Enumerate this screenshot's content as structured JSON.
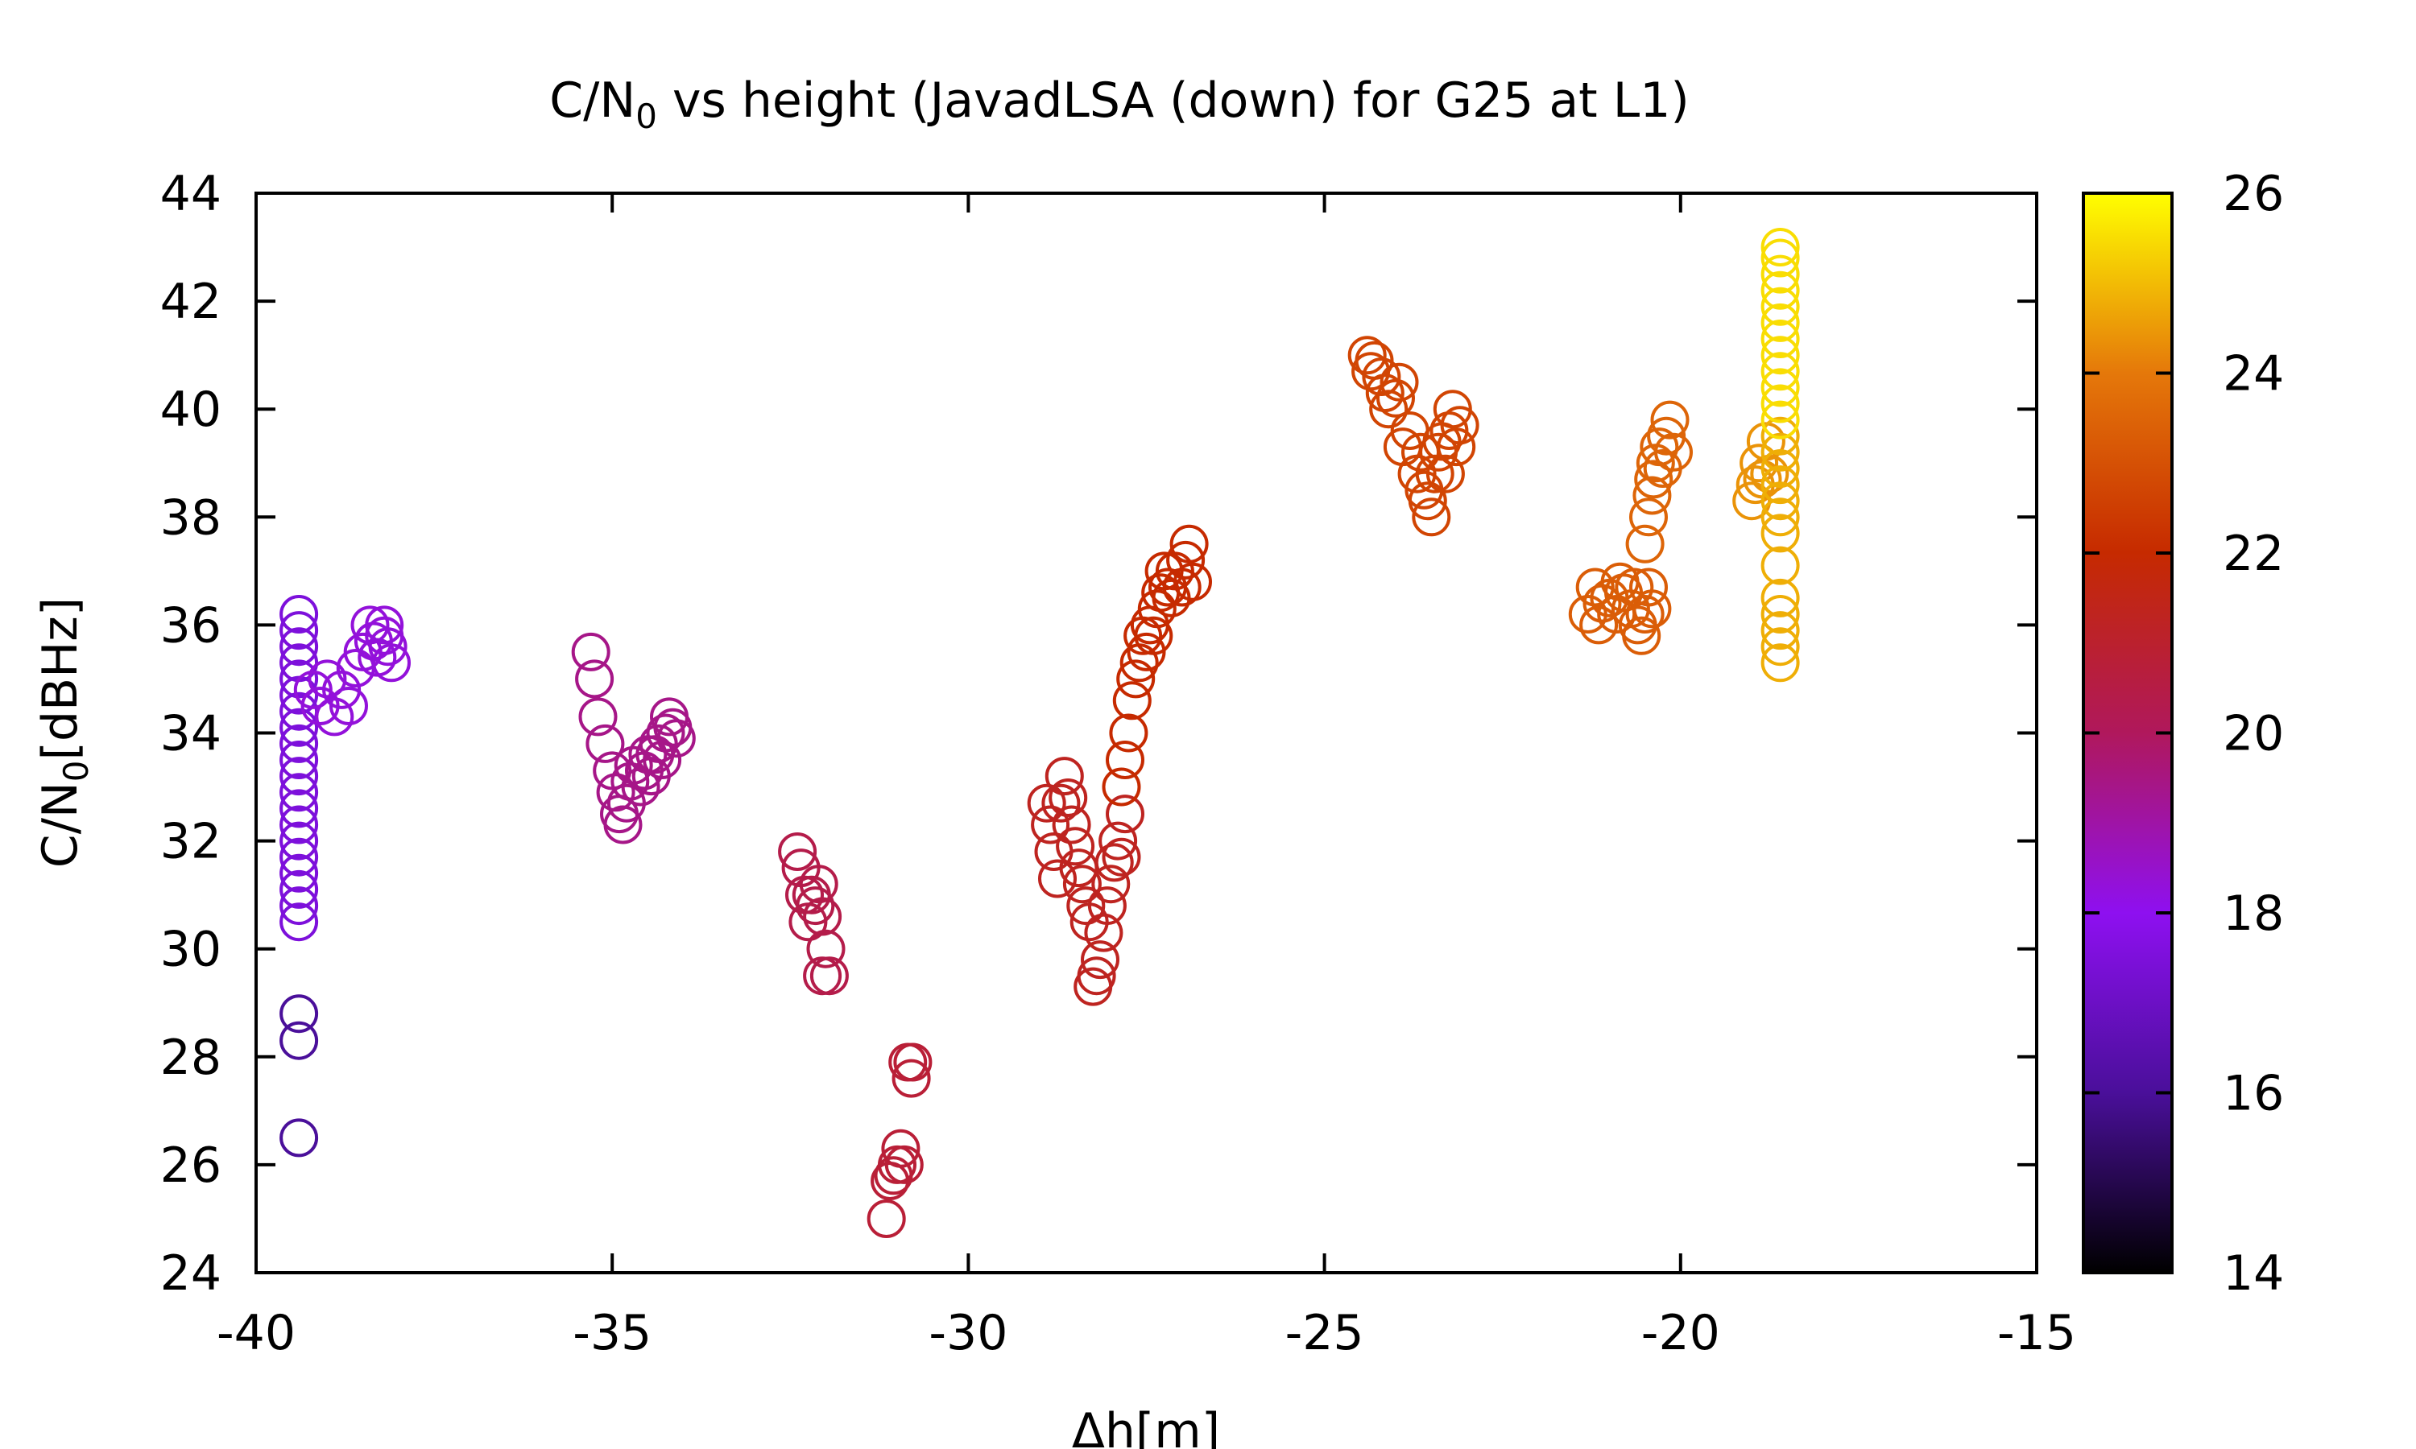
{
  "chart_data": {
    "type": "scatter",
    "title": "C/N",
    "title_sub": "0",
    "title_rest": " vs height (JavadLSA (down) for G25 at L1)",
    "xlabel": "Δh[m]",
    "ylabel": "C/N",
    "ylabel_sub": "0",
    "ylabel_rest": "[dBHz]",
    "xlim": [
      -40,
      -15
    ],
    "ylim": [
      24,
      44
    ],
    "xticks": [
      "-40",
      "-35",
      "-30",
      "-25",
      "-20",
      "-15"
    ],
    "yticks": [
      "24",
      "26",
      "28",
      "30",
      "32",
      "34",
      "36",
      "38",
      "40",
      "42",
      "44"
    ],
    "colorbar": {
      "range": [
        14,
        26
      ],
      "ticks": [
        "14",
        "16",
        "18",
        "20",
        "22",
        "24",
        "26"
      ],
      "palette": "black-purple-red-orange-yellow",
      "colors": [
        "#000000",
        "#4a0f9a",
        "#8e10f0",
        "#b0185c",
        "#c62a00",
        "#e5780a",
        "#ffff00"
      ]
    },
    "grid": false,
    "marker": "open-circle",
    "series": [
      {
        "color_value": 16.0,
        "points": [
          [
            -39.4,
            26.5
          ],
          [
            -39.4,
            28.3
          ],
          [
            -39.4,
            28.8
          ]
        ]
      },
      {
        "color_value": 17.5,
        "points": [
          [
            -39.4,
            30.5
          ],
          [
            -39.4,
            30.8
          ],
          [
            -39.4,
            31.1
          ],
          [
            -39.4,
            31.4
          ],
          [
            -39.4,
            31.7
          ],
          [
            -39.4,
            32.0
          ],
          [
            -39.4,
            32.3
          ],
          [
            -39.4,
            32.6
          ],
          [
            -39.4,
            32.9
          ],
          [
            -39.4,
            33.2
          ],
          [
            -39.4,
            33.5
          ],
          [
            -39.4,
            33.8
          ],
          [
            -39.4,
            34.1
          ],
          [
            -39.4,
            34.4
          ],
          [
            -39.4,
            34.7
          ],
          [
            -39.4,
            35.0
          ],
          [
            -39.4,
            35.3
          ],
          [
            -39.4,
            35.6
          ],
          [
            -39.4,
            35.9
          ],
          [
            -39.4,
            36.2
          ]
        ]
      },
      {
        "color_value": 18.3,
        "points": [
          [
            -39.2,
            34.8
          ],
          [
            -39.1,
            34.5
          ],
          [
            -39.0,
            35.0
          ],
          [
            -38.9,
            34.3
          ],
          [
            -38.8,
            34.8
          ],
          [
            -38.7,
            34.5
          ],
          [
            -38.6,
            35.2
          ],
          [
            -38.5,
            35.5
          ],
          [
            -38.4,
            36.0
          ],
          [
            -38.35,
            35.7
          ],
          [
            -38.3,
            35.4
          ],
          [
            -38.2,
            36.0
          ],
          [
            -38.15,
            35.6
          ],
          [
            -38.1,
            35.3
          ],
          [
            -38.2,
            35.8
          ]
        ]
      },
      {
        "color_value": 19.4,
        "points": [
          [
            -35.3,
            35.5
          ],
          [
            -35.25,
            35.0
          ],
          [
            -35.2,
            34.3
          ],
          [
            -35.1,
            33.8
          ],
          [
            -35.0,
            33.3
          ],
          [
            -34.95,
            32.9
          ],
          [
            -34.9,
            32.5
          ],
          [
            -34.85,
            32.3
          ],
          [
            -34.8,
            32.7
          ],
          [
            -34.75,
            33.1
          ],
          [
            -34.7,
            33.4
          ],
          [
            -34.6,
            33.0
          ],
          [
            -34.55,
            33.3
          ],
          [
            -34.5,
            33.6
          ],
          [
            -34.45,
            33.2
          ],
          [
            -34.4,
            33.6
          ],
          [
            -34.35,
            33.8
          ],
          [
            -34.3,
            33.5
          ],
          [
            -34.25,
            34.0
          ],
          [
            -34.2,
            34.3
          ],
          [
            -34.15,
            34.1
          ],
          [
            -34.1,
            33.9
          ]
        ]
      },
      {
        "color_value": 20.4,
        "points": [
          [
            -32.4,
            31.8
          ],
          [
            -32.35,
            31.5
          ],
          [
            -32.3,
            31.0
          ],
          [
            -32.25,
            30.5
          ],
          [
            -32.2,
            31.0
          ],
          [
            -32.15,
            30.8
          ],
          [
            -32.1,
            31.2
          ],
          [
            -32.05,
            30.6
          ],
          [
            -32.0,
            30.0
          ],
          [
            -31.95,
            29.5
          ],
          [
            -32.05,
            29.5
          ]
        ]
      },
      {
        "color_value": 20.8,
        "points": [
          [
            -31.15,
            25.0
          ],
          [
            -31.1,
            25.7
          ],
          [
            -31.05,
            25.8
          ],
          [
            -31.0,
            26.0
          ],
          [
            -30.95,
            26.3
          ],
          [
            -30.9,
            26.0
          ],
          [
            -30.85,
            27.9
          ],
          [
            -30.8,
            27.6
          ],
          [
            -30.78,
            27.9
          ]
        ]
      },
      {
        "color_value": 21.3,
        "points": [
          [
            -28.9,
            32.7
          ],
          [
            -28.85,
            32.3
          ],
          [
            -28.8,
            31.8
          ],
          [
            -28.75,
            31.3
          ],
          [
            -28.7,
            32.7
          ],
          [
            -28.65,
            33.2
          ],
          [
            -28.6,
            32.8
          ],
          [
            -28.55,
            32.3
          ],
          [
            -28.5,
            31.9
          ],
          [
            -28.45,
            31.5
          ],
          [
            -28.4,
            31.2
          ],
          [
            -28.35,
            30.8
          ],
          [
            -28.3,
            30.5
          ],
          [
            -28.25,
            29.3
          ],
          [
            -28.2,
            29.5
          ],
          [
            -28.15,
            29.8
          ],
          [
            -28.1,
            30.3
          ],
          [
            -28.05,
            30.8
          ],
          [
            -28.0,
            31.2
          ],
          [
            -27.95,
            31.6
          ],
          [
            -27.9,
            32.0
          ],
          [
            -27.85,
            31.7
          ],
          [
            -27.8,
            32.5
          ]
        ]
      },
      {
        "color_value": 22.0,
        "points": [
          [
            -27.85,
            33.0
          ],
          [
            -27.8,
            33.5
          ],
          [
            -27.75,
            34.0
          ],
          [
            -27.7,
            34.6
          ],
          [
            -27.65,
            35.0
          ],
          [
            -27.6,
            35.3
          ],
          [
            -27.55,
            35.8
          ],
          [
            -27.5,
            35.5
          ],
          [
            -27.45,
            36.0
          ],
          [
            -27.4,
            35.8
          ],
          [
            -27.35,
            36.3
          ],
          [
            -27.3,
            36.6
          ],
          [
            -27.25,
            37.0
          ],
          [
            -27.2,
            36.7
          ],
          [
            -27.15,
            36.5
          ],
          [
            -27.1,
            37.0
          ],
          [
            -27.0,
            36.7
          ],
          [
            -26.95,
            37.2
          ],
          [
            -26.9,
            37.5
          ],
          [
            -26.85,
            36.8
          ]
        ]
      },
      {
        "color_value": 22.7,
        "points": [
          [
            -24.4,
            41.0
          ],
          [
            -24.35,
            40.7
          ],
          [
            -24.3,
            40.9
          ],
          [
            -24.2,
            40.6
          ],
          [
            -24.15,
            40.3
          ],
          [
            -24.1,
            40.0
          ],
          [
            -24.0,
            40.2
          ],
          [
            -23.95,
            40.5
          ],
          [
            -23.9,
            39.3
          ],
          [
            -23.8,
            39.6
          ],
          [
            -23.7,
            38.8
          ],
          [
            -23.65,
            39.2
          ],
          [
            -23.6,
            38.5
          ],
          [
            -23.55,
            38.3
          ],
          [
            -23.5,
            38.0
          ],
          [
            -23.45,
            38.8
          ],
          [
            -23.4,
            39.2
          ],
          [
            -23.35,
            39.4
          ],
          [
            -23.3,
            38.8
          ],
          [
            -23.25,
            39.6
          ],
          [
            -23.2,
            40.0
          ],
          [
            -23.15,
            39.3
          ],
          [
            -23.1,
            39.7
          ]
        ]
      },
      {
        "color_value": 23.3,
        "points": [
          [
            -21.3,
            36.2
          ],
          [
            -21.2,
            36.7
          ],
          [
            -21.15,
            36.0
          ],
          [
            -21.1,
            36.4
          ],
          [
            -21.0,
            36.5
          ],
          [
            -20.9,
            36.2
          ],
          [
            -20.85,
            36.8
          ],
          [
            -20.8,
            36.6
          ],
          [
            -20.7,
            36.3
          ],
          [
            -20.65,
            36.7
          ],
          [
            -20.6,
            36.0
          ],
          [
            -20.55,
            35.8
          ],
          [
            -20.5,
            36.2
          ],
          [
            -20.45,
            36.7
          ],
          [
            -20.4,
            36.3
          ]
        ]
      },
      {
        "color_value": 23.5,
        "points": [
          [
            -20.5,
            37.5
          ],
          [
            -20.45,
            38.0
          ],
          [
            -20.4,
            38.4
          ],
          [
            -20.38,
            38.7
          ],
          [
            -20.35,
            39.0
          ],
          [
            -20.3,
            39.3
          ],
          [
            -20.25,
            38.9
          ],
          [
            -20.2,
            39.5
          ],
          [
            -20.15,
            39.8
          ],
          [
            -20.1,
            39.2
          ]
        ]
      },
      {
        "color_value": 24.4,
        "points": [
          [
            -19.0,
            38.3
          ],
          [
            -18.95,
            38.6
          ],
          [
            -18.9,
            39.0
          ],
          [
            -18.85,
            38.7
          ],
          [
            -18.8,
            39.4
          ],
          [
            -18.75,
            38.8
          ]
        ]
      },
      {
        "color_value": 24.8,
        "points": [
          [
            -18.6,
            35.3
          ],
          [
            -18.6,
            35.6
          ],
          [
            -18.6,
            35.9
          ],
          [
            -18.6,
            36.2
          ],
          [
            -18.6,
            36.5
          ],
          [
            -18.6,
            37.1
          ],
          [
            -18.6,
            37.7
          ],
          [
            -18.6,
            38.0
          ],
          [
            -18.6,
            38.3
          ],
          [
            -18.6,
            38.6
          ],
          [
            -18.6,
            38.9
          ],
          [
            -18.6,
            39.2
          ],
          [
            -18.6,
            39.5
          ]
        ]
      },
      {
        "color_value": 25.5,
        "points": [
          [
            -18.6,
            39.8
          ],
          [
            -18.6,
            40.1
          ],
          [
            -18.6,
            40.4
          ],
          [
            -18.6,
            40.7
          ],
          [
            -18.6,
            41.0
          ],
          [
            -18.6,
            41.3
          ],
          [
            -18.6,
            41.6
          ],
          [
            -18.6,
            41.9
          ],
          [
            -18.6,
            42.2
          ],
          [
            -18.6,
            42.5
          ],
          [
            -18.6,
            42.8
          ],
          [
            -18.6,
            43.0
          ]
        ]
      }
    ]
  }
}
